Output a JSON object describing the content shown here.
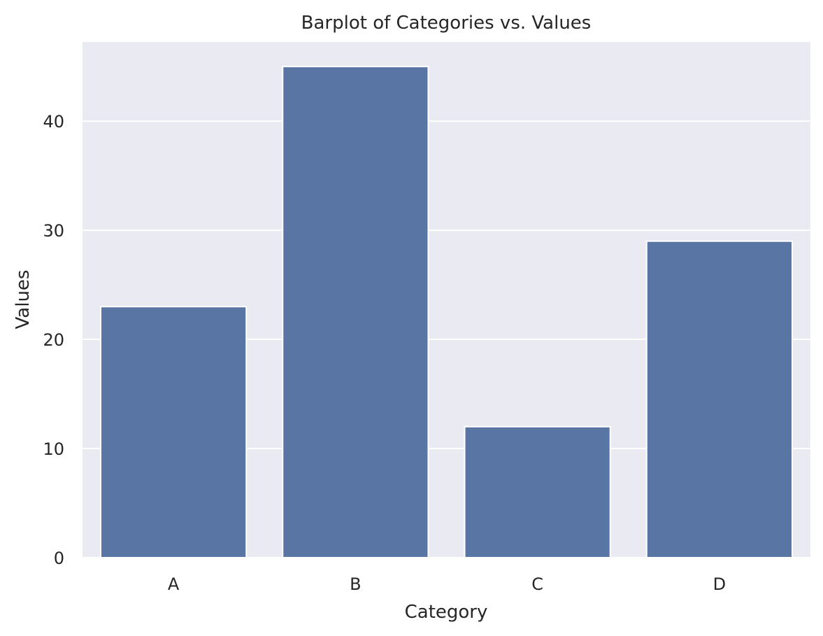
{
  "chart_data": {
    "type": "bar",
    "title": "Barplot of Categories vs. Values",
    "xlabel": "Category",
    "ylabel": "Values",
    "categories": [
      "A",
      "B",
      "C",
      "D"
    ],
    "values": [
      23,
      45,
      12,
      29
    ],
    "ylim": [
      0,
      47.25
    ],
    "yticks": [
      0,
      10,
      20,
      30,
      40
    ],
    "grid": true,
    "colors": {
      "bar": "#5975A4",
      "plot_background": "#EAEAF2",
      "grid": "#FFFFFF",
      "text": "#262626"
    }
  }
}
